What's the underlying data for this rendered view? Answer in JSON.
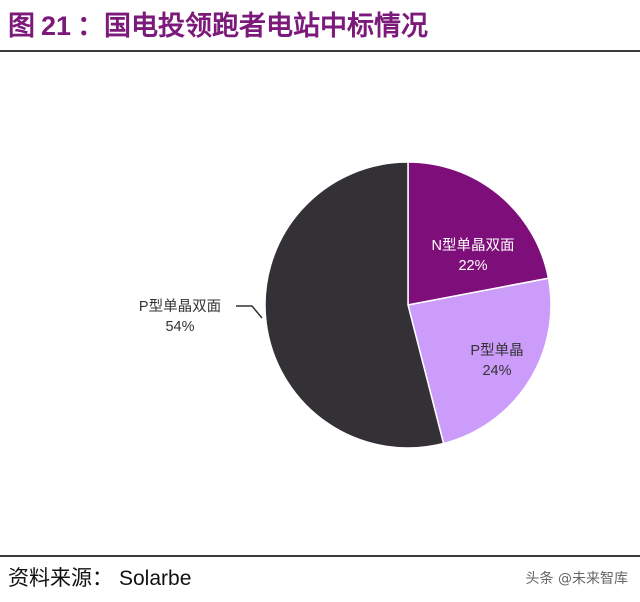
{
  "header": {
    "prefix": "图",
    "number": "21",
    "title_text": "：国电投领跑者电站中标情况"
  },
  "footer": {
    "source_label": "资料来源：",
    "source_name": "Solarbe",
    "watermark": "头条 @未来智库"
  },
  "colors": {
    "title": "#7b1a7a",
    "n_bifacial": "#7e0f7a",
    "p_mono": "#cc9cfa",
    "p_bifacial": "#333036"
  },
  "chart_data": {
    "type": "pie",
    "title": "",
    "slices": [
      {
        "label": "N型单晶双面",
        "value": 22,
        "value_label": "22%",
        "color": "#7e0f7a"
      },
      {
        "label": "P型单晶",
        "value": 24,
        "value_label": "24%",
        "color": "#cc9cfa"
      },
      {
        "label": "P型单晶双面",
        "value": 54,
        "value_label": "54%",
        "color": "#333036"
      }
    ]
  }
}
